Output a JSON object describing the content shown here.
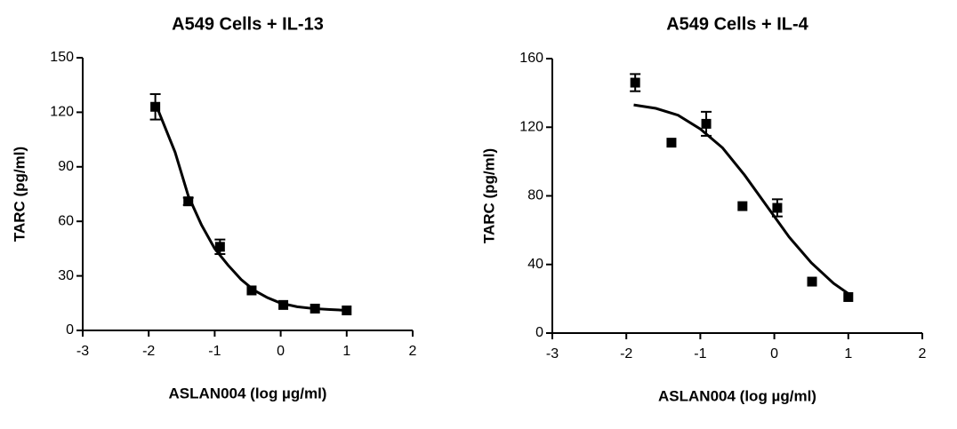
{
  "chart_data": [
    {
      "type": "scatter",
      "title": "A549 Cells + IL-13",
      "xlabel": "ASLAN004 (log µg/ml)",
      "ylabel": "TARC (pg/ml)",
      "xlim": [
        -3,
        2
      ],
      "xticks": [
        -3,
        -2,
        -1,
        0,
        1,
        2
      ],
      "ylim": [
        0,
        150
      ],
      "yticks": [
        0,
        30,
        60,
        90,
        120,
        150
      ],
      "color": "#000000",
      "x": [
        -1.9,
        -1.4,
        -0.92,
        -0.44,
        0.04,
        0.52,
        1.0
      ],
      "values": [
        123,
        71,
        46,
        22,
        14,
        12,
        11
      ],
      "errors": [
        7,
        2,
        4,
        null,
        null,
        null,
        null
      ],
      "fit": {
        "x": [
          -1.9,
          -1.6,
          -1.4,
          -1.2,
          -1.0,
          -0.8,
          -0.6,
          -0.4,
          -0.2,
          0,
          0.25,
          0.5,
          0.75,
          1.0
        ],
        "values": [
          125,
          98,
          74,
          58,
          45,
          36,
          28,
          22,
          18,
          15,
          13,
          12,
          11.5,
          11
        ]
      }
    },
    {
      "type": "scatter",
      "title": "A549 Cells + IL-4",
      "xlabel": "ASLAN004 (log µg/ml)",
      "ylabel": "TARC (pg/ml)",
      "xlim": [
        -3,
        2
      ],
      "xticks": [
        -3,
        -2,
        -1,
        0,
        1,
        2
      ],
      "ylim": [
        0,
        160
      ],
      "yticks": [
        0,
        40,
        80,
        120,
        160
      ],
      "color": "#000000",
      "x": [
        -1.88,
        -1.39,
        -0.92,
        -0.43,
        0.04,
        0.51,
        1.0
      ],
      "values": [
        146,
        111,
        122,
        74,
        73,
        30,
        21
      ],
      "errors": [
        5,
        null,
        7,
        null,
        5,
        null,
        null
      ],
      "fit": {
        "x": [
          -1.9,
          -1.6,
          -1.3,
          -1.0,
          -0.7,
          -0.4,
          -0.1,
          0.2,
          0.5,
          0.8,
          1.0
        ],
        "values": [
          133,
          131,
          127,
          119,
          108,
          92,
          74,
          56,
          41,
          29,
          23
        ]
      }
    }
  ]
}
